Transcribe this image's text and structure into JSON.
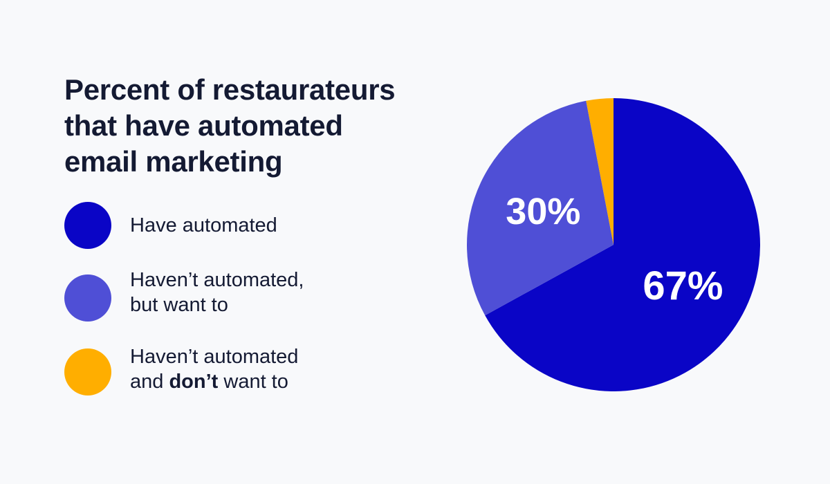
{
  "title_lines": [
    "Percent of restaurateurs",
    "that have automated",
    "email marketing"
  ],
  "legend": [
    {
      "lines": [
        "Have automated"
      ]
    },
    {
      "lines": [
        "Haven’t automated,",
        "but want to"
      ]
    },
    {
      "line1": "Haven’t automated",
      "line2_pre": "and ",
      "line2_bold": "don’t",
      "line2_post": " want to"
    }
  ],
  "colors": {
    "have_automated": "#0a05c6",
    "want_to": "#4f4fd6",
    "dont_want": "#ffae00",
    "background": "#f8f9fb",
    "text": "#141a33"
  },
  "chart_data": {
    "type": "pie",
    "title": "Percent of restaurateurs that have automated email marketing",
    "categories": [
      "Have automated",
      "Haven’t automated, but want to",
      "Haven’t automated and don’t want to"
    ],
    "values": [
      67,
      30,
      3
    ],
    "labels": [
      "67%",
      "30%",
      ""
    ],
    "legend": "left"
  }
}
